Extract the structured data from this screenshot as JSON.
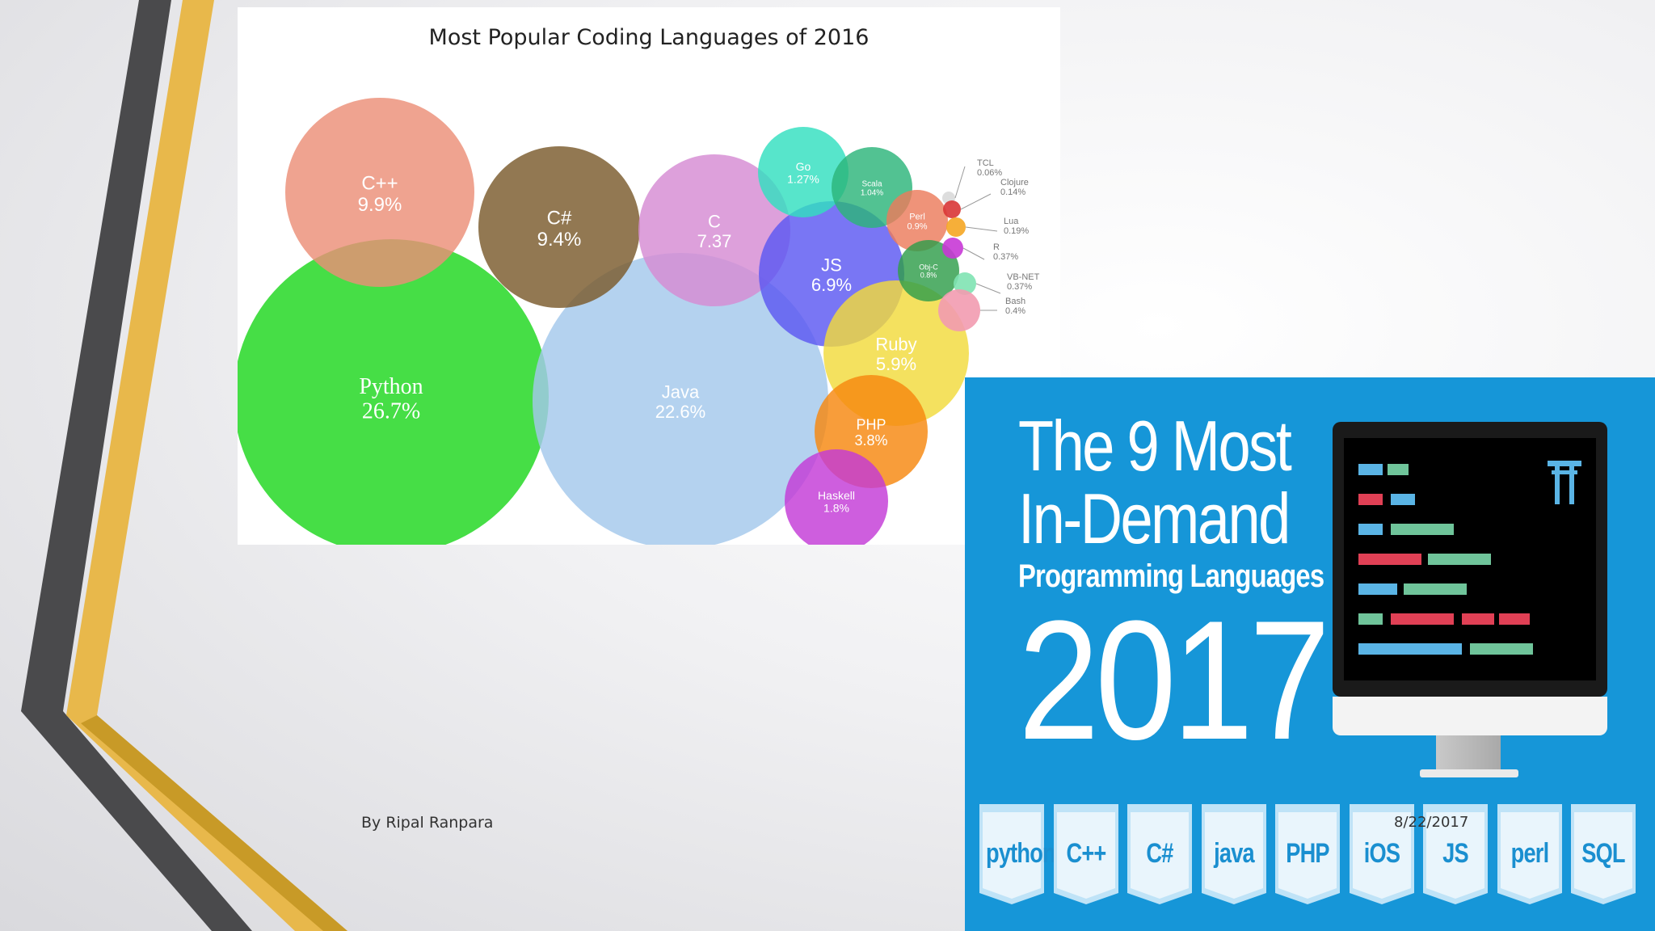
{
  "slide": {
    "author": "By Ripal Ranpara",
    "date": "8/22/2017"
  },
  "bubble_chart": {
    "title": "Most Popular Coding Languages of 2016",
    "bubbles": [
      {
        "name": "C++",
        "value": "9.9%",
        "color": "#ec8f77"
      },
      {
        "name": "C#",
        "value": "9.4%",
        "color": "#7a5a2c"
      },
      {
        "name": "C",
        "value": "7.37",
        "color": "#d68bd3"
      },
      {
        "name": "Go",
        "value": "1.27%",
        "color": "#32dfc0"
      },
      {
        "name": "Scala",
        "value": "1.04%",
        "color": "#2cb57a"
      },
      {
        "name": "JS",
        "value": "6.9%",
        "color": "#5b58f2"
      },
      {
        "name": "Perl",
        "value": "0.9%",
        "color": "#ec7b5c"
      },
      {
        "name": "Obj-C",
        "value": "0.8%",
        "color": "#2f9e4a"
      },
      {
        "name": "Ruby",
        "value": "5.9%",
        "color": "#f2da3c"
      },
      {
        "name": "Python",
        "value": "26.7%",
        "color": "#3cdc3c"
      },
      {
        "name": "Java",
        "value": "22.6%",
        "color": "#a4c8ec"
      },
      {
        "name": "PHP",
        "value": "3.8%",
        "color": "#f7880f"
      },
      {
        "name": "Haskell",
        "value": "1.8%",
        "color": "#c33ad7"
      }
    ],
    "small_bubbles": [
      {
        "name": "TCL",
        "value": "0.06%",
        "color": "#d9d9d9"
      },
      {
        "name": "Clojure",
        "value": "0.14%",
        "color": "#d93636"
      },
      {
        "name": "Lua",
        "value": "0.19%",
        "color": "#f5a623"
      },
      {
        "name": "R",
        "value": "0.37%",
        "color": "#c838d6"
      },
      {
        "name": "VB-NET",
        "value": "0.37%",
        "color": "#7fe3b3"
      },
      {
        "name": "Bash",
        "value": "0.4%",
        "color": "#f29bb0"
      }
    ]
  },
  "banner": {
    "line1": "The 9 Most",
    "line2": "In-Demand",
    "line3": "Programming Languages",
    "year": "2017",
    "languages": [
      "python",
      "C++",
      "C#",
      "java",
      "PHP",
      "iOS",
      "JS",
      "perl",
      "SQL"
    ],
    "background": "#1696d8",
    "code_colors": [
      "#5ab4e5",
      "#e04055",
      "#6fc49a"
    ],
    "logo_icon": "torii-gate-icon"
  }
}
